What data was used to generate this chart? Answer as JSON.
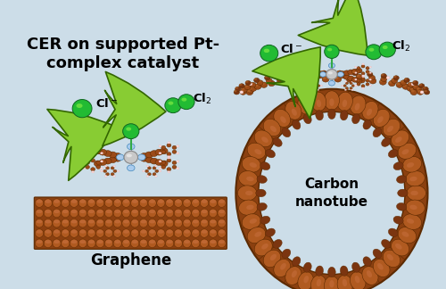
{
  "title": "CER on supported Pt-\ncomplex catalyst",
  "title_fontsize": 13,
  "title_fontweight": "bold",
  "label_graphene": "Graphene",
  "label_nanotube": "Carbon\nnanotube",
  "bg_color": "#ccdde8",
  "brown_dark": "#5C2A00",
  "brown_mid": "#8B4010",
  "brown_light": "#B05A20",
  "brown_bead": "#9B4A18",
  "green_atom": "#22bb33",
  "green_dark": "#116622",
  "green_light": "#88ee44",
  "arrow_fill": "#88cc33",
  "arrow_edge": "#336600",
  "pt_color": "#c8c8c8",
  "pt_edge": "#888888",
  "blue_n": "#aaccee",
  "blue_n_edge": "#4488bb",
  "pink_h": "#ffdddd",
  "cl_line": "#33aa44",
  "white_mol": "#f0f0f0"
}
